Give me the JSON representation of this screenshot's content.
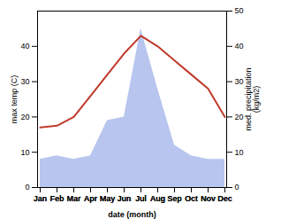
{
  "chart_data": {
    "type": "line",
    "categories": [
      "Jan",
      "Feb",
      "Mar",
      "Apr",
      "May",
      "Jun",
      "Jul",
      "Aug",
      "Sep",
      "Oct",
      "Nov",
      "Dec"
    ],
    "xlabel": "date (month)",
    "ylabel": "max temp (C)",
    "y2label": "med. precipitation\n(kg/m2)",
    "series": [
      {
        "type": "area",
        "axis": "y2",
        "color": "#b8c5ee",
        "values": [
          8,
          9,
          8,
          9,
          19,
          20,
          45,
          28,
          12,
          9,
          8,
          8
        ]
      },
      {
        "type": "line",
        "color": "#c0392b",
        "values": [
          17,
          17.5,
          20,
          26,
          32,
          38,
          43,
          40,
          36,
          32,
          28,
          20
        ]
      }
    ],
    "ylim": [
      0,
      50
    ],
    "yticks": [
      0,
      10,
      20,
      30,
      40
    ],
    "y2lim": [
      0,
      50
    ],
    "y2ticks": [
      0,
      10,
      20,
      30,
      40,
      50
    ]
  }
}
